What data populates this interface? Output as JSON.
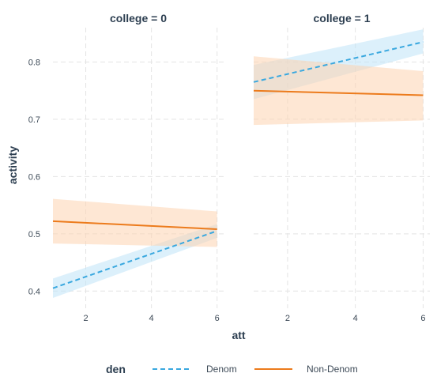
{
  "chart_data": {
    "type": "line",
    "xlabel": "att",
    "ylabel": "activity",
    "x_ticks": [
      2,
      4,
      6
    ],
    "y_ticks": [
      0.4,
      0.5,
      0.6,
      0.7,
      0.8
    ],
    "xlim": [
      1,
      6.2
    ],
    "ylim": [
      0.37,
      0.86
    ],
    "grid": true,
    "legend": {
      "title": "den",
      "position": "bottom",
      "entries": [
        {
          "label": "Denom",
          "color": "#3aa8df",
          "line": "dashed"
        },
        {
          "label": "Non-Denom",
          "color": "#ec7b1c",
          "line": "solid"
        }
      ]
    },
    "panels": [
      {
        "title": "college = 0",
        "series": [
          {
            "name": "Denom",
            "color": "#3aa8df",
            "fill": "#bfe3f7",
            "x": [
              1,
              6
            ],
            "y": [
              0.405,
              0.505
            ],
            "lower": [
              0.388,
              0.493
            ],
            "upper": [
              0.422,
              0.517
            ]
          },
          {
            "name": "Non-Denom",
            "color": "#ec7b1c",
            "fill": "#fdd3b0",
            "x": [
              1,
              6
            ],
            "y": [
              0.522,
              0.508
            ],
            "lower": [
              0.483,
              0.477
            ],
            "upper": [
              0.561,
              0.539
            ]
          }
        ]
      },
      {
        "title": "college = 1",
        "series": [
          {
            "name": "Denom",
            "color": "#3aa8df",
            "fill": "#bfe3f7",
            "x": [
              1,
              6
            ],
            "y": [
              0.765,
              0.835
            ],
            "lower": [
              0.735,
              0.815
            ],
            "upper": [
              0.795,
              0.857
            ]
          },
          {
            "name": "Non-Denom",
            "color": "#ec7b1c",
            "fill": "#fdd3b0",
            "x": [
              1,
              6
            ],
            "y": [
              0.75,
              0.742
            ],
            "lower": [
              0.69,
              0.698
            ],
            "upper": [
              0.81,
              0.784
            ]
          }
        ]
      }
    ]
  }
}
